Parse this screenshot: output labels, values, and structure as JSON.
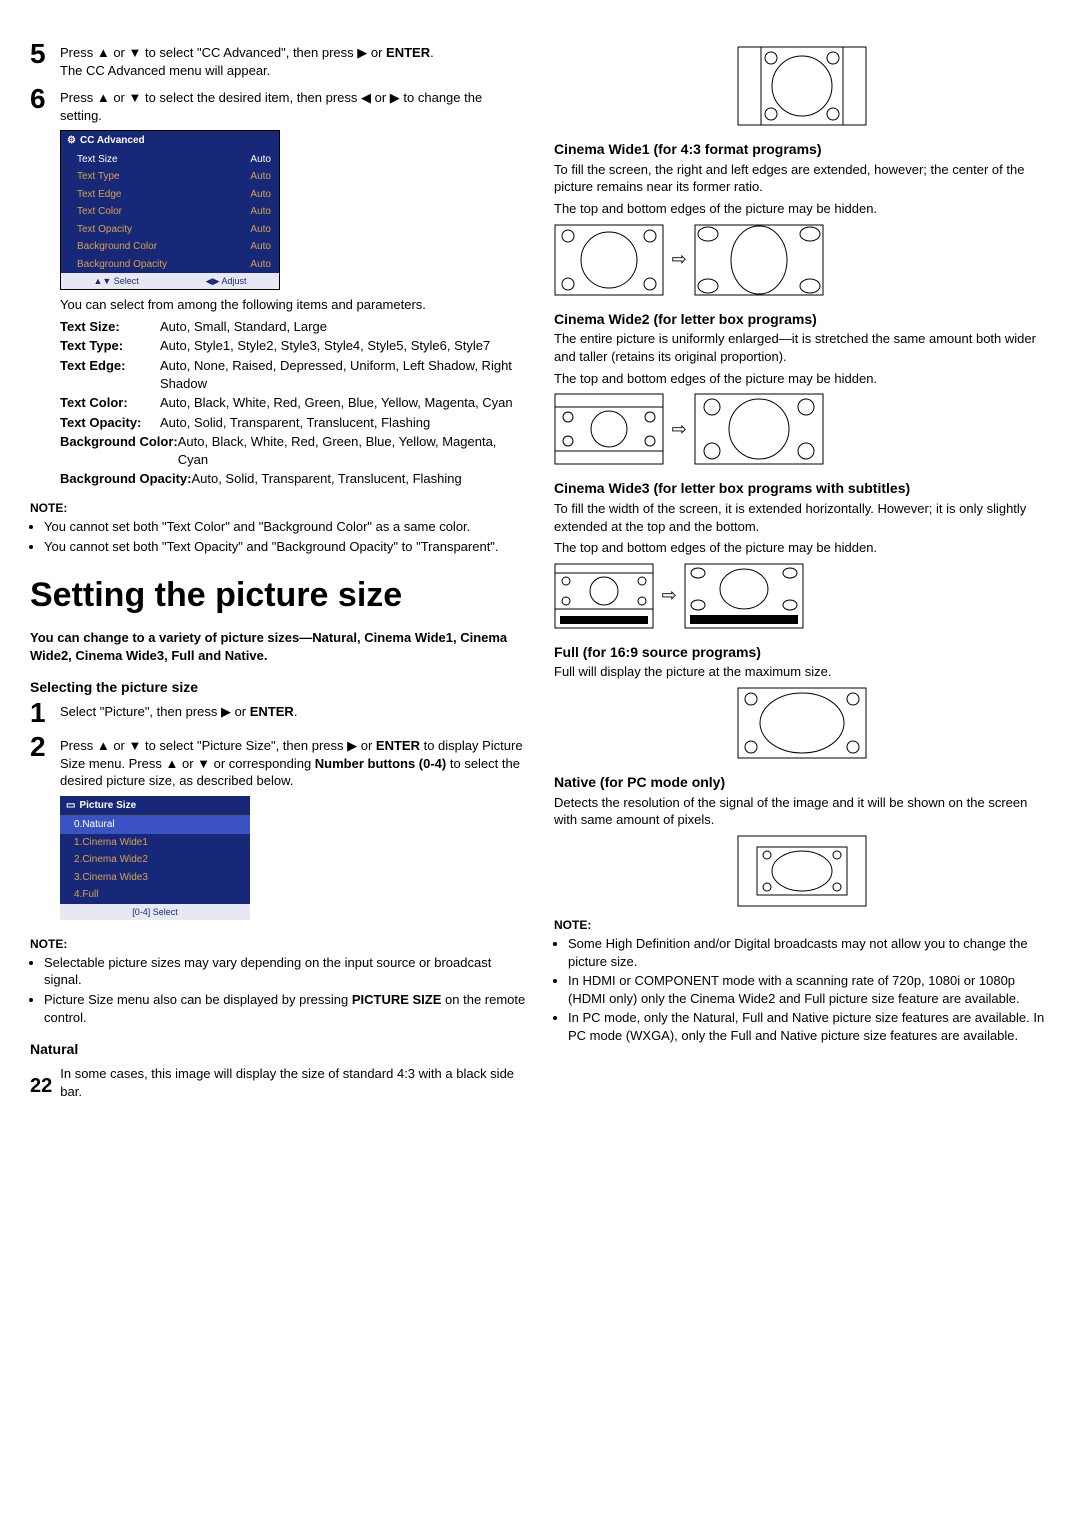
{
  "left": {
    "step5": {
      "num": "5",
      "line1": "Press ▲ or ▼ to select \"CC Advanced\", then press ▶ or ",
      "enter": "ENTER",
      "line2": "The CC Advanced menu will appear."
    },
    "step6": {
      "num": "6",
      "line1": "Press ▲ or ▼ to select the desired item, then press ◀ or ▶ to change the setting."
    },
    "ccmenu": {
      "title": "CC Advanced",
      "rows": [
        {
          "k": "Text Size",
          "v": "Auto",
          "head": true
        },
        {
          "k": "Text Type",
          "v": "Auto"
        },
        {
          "k": "Text Edge",
          "v": "Auto"
        },
        {
          "k": "Text Color",
          "v": "Auto"
        },
        {
          "k": "Text Opacity",
          "v": "Auto"
        },
        {
          "k": "Background Color",
          "v": "Auto"
        },
        {
          "k": "Background Opacity",
          "v": "Auto"
        }
      ],
      "footer1": "▲▼ Select",
      "footer2": "◀▶ Adjust"
    },
    "afterMenu": "You can select from among the following items and parameters.",
    "params": [
      {
        "label": "Text Size:",
        "val": "Auto, Small, Standard, Large"
      },
      {
        "label": "Text Type:",
        "val": "Auto, Style1, Style2, Style3, Style4, Style5, Style6, Style7"
      },
      {
        "label": "Text Edge:",
        "val": "Auto, None, Raised, Depressed, Uniform, Left Shadow, Right Shadow"
      },
      {
        "label": "Text Color:",
        "val": "Auto, Black, White, Red, Green, Blue, Yellow, Magenta, Cyan"
      },
      {
        "label": "Text Opacity:",
        "val": "Auto, Solid, Transparent, Translucent, Flashing"
      },
      {
        "label": "Background Color:",
        "val": "Auto, Black, White, Red, Green, Blue, Yellow, Magenta, Cyan"
      },
      {
        "label": "Background Opacity:",
        "val": "Auto, Solid, Transparent, Translucent, Flashing"
      }
    ],
    "noteLabel": "NOTE:",
    "noteItems": [
      "You cannot set both \"Text Color\" and \"Background Color\" as a same color.",
      "You cannot set both \"Text Opacity\" and \"Background Opacity\" to \"Transparent\"."
    ],
    "h1": "Setting the picture size",
    "intro": "You can change to a variety of picture sizes—Natural, Cinema Wide1, Cinema Wide2, Cinema Wide3, Full and Native.",
    "selHeading": "Selecting the picture size",
    "s1": {
      "num": "1",
      "text": "Select \"Picture\", then press ▶ or ",
      "enter": "ENTER",
      "tail": "."
    },
    "s2": {
      "num": "2",
      "a": "Press ▲ or ▼ to select \"Picture Size\", then press ▶ or ",
      "enter": "ENTER",
      "b": " to display Picture Size menu. Press ▲ or ▼ or corresponding ",
      "btns": "Number buttons (0-4)",
      "c": " to select the desired picture size, as described below."
    },
    "psize": {
      "title": "Picture Size",
      "rows": [
        {
          "t": "0.Natural",
          "sel": true
        },
        {
          "t": "1.Cinema Wide1"
        },
        {
          "t": "2.Cinema Wide2"
        },
        {
          "t": "3.Cinema Wide3"
        },
        {
          "t": "4.Full"
        }
      ],
      "footer": "[0-4] Select"
    },
    "note2Label": "NOTE:",
    "note2Items": [
      "Selectable picture sizes may vary depending on the input source or broadcast signal.",
      {
        "pre": "Picture Size menu also can be displayed by pressing ",
        "b": "PICTURE SIZE",
        "post": " on the remote control."
      }
    ],
    "naturalH": "Natural",
    "naturalText": "In some cases, this image will display the size of standard 4:3 with a black side bar.",
    "pageNum": "22"
  },
  "right": {
    "cw1": {
      "h": "Cinema Wide1 (for 4:3 format programs)",
      "p1": "To fill the screen, the right and left edges are extended, however; the center of the picture remains near its former ratio.",
      "p2": "The top and bottom edges of the picture may be hidden."
    },
    "cw2": {
      "h": "Cinema Wide2 (for letter box programs)",
      "p1": "The entire picture is uniformly enlarged—it is stretched the same amount both wider and taller (retains its original proportion).",
      "p2": "The top and bottom edges of the picture may be hidden."
    },
    "cw3": {
      "h": "Cinema Wide3 (for letter box programs with subtitles)",
      "p1": "To fill the width of the screen, it is extended horizontally. However; it is only slightly extended at the top and the bottom.",
      "p2": "The top and bottom edges of the picture may be hidden."
    },
    "full": {
      "h": "Full (for 16:9 source programs)",
      "p": "Full will display the picture at the maximum size."
    },
    "native": {
      "h": "Native (for PC mode only)",
      "p": "Detects the resolution of the signal of the image and it will be shown on the screen with same amount of pixels."
    },
    "noteLabel": "NOTE:",
    "noteItems": [
      "Some High Definition and/or Digital broadcasts may not allow you to change the picture size.",
      "In HDMI or COMPONENT mode with a scanning rate of 720p, 1080i or 1080p (HDMI only) only the Cinema Wide2 and Full picture size feature are available.",
      "In PC mode, only the Natural, Full and Native picture size features are available. In PC mode (WXGA), only the Full and Native picture size features are available."
    ]
  }
}
